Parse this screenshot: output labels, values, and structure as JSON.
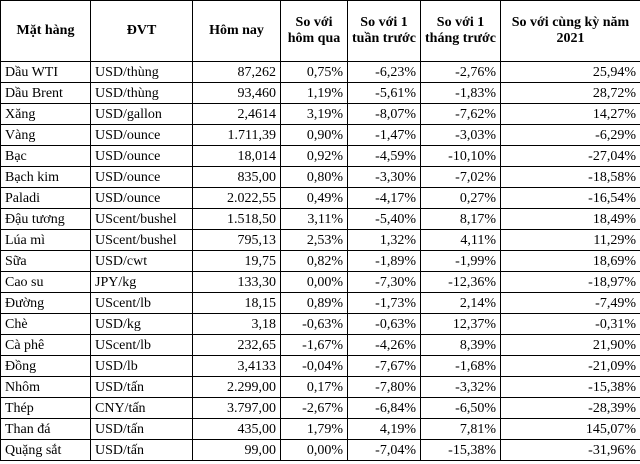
{
  "table": {
    "header": [
      "Mặt hàng",
      "ĐVT",
      "Hôm nay",
      "So với hôm qua",
      "So với 1 tuần trước",
      "So với 1 tháng trước",
      "So với cùng kỳ năm 2021"
    ],
    "rows": [
      [
        "Dầu WTI",
        "USD/thùng",
        "87,262",
        "0,75%",
        "-6,23%",
        "-2,76%",
        "25,94%"
      ],
      [
        "Dầu Brent",
        "USD/thùng",
        "93,460",
        "1,19%",
        "-5,61%",
        "-1,83%",
        "28,72%"
      ],
      [
        "Xăng",
        "USD/gallon",
        "2,4614",
        "3,19%",
        "-8,07%",
        "-7,62%",
        "14,27%"
      ],
      [
        "Vàng",
        "USD/ounce",
        "1.711,39",
        "0,90%",
        "-1,47%",
        "-3,03%",
        "-6,29%"
      ],
      [
        "Bạc",
        "USD/ounce",
        "18,014",
        "0,92%",
        "-4,59%",
        "-10,10%",
        "-27,04%"
      ],
      [
        "Bạch kim",
        "USD/ounce",
        "835,00",
        "0,80%",
        "-3,30%",
        "-7,02%",
        "-18,58%"
      ],
      [
        "Paladi",
        "USD/ounce",
        "2.022,55",
        "0,49%",
        "-4,17%",
        "0,27%",
        "-16,54%"
      ],
      [
        "Đậu tương",
        "UScent/bushel",
        "1.518,50",
        "3,11%",
        "-5,40%",
        "8,17%",
        "18,49%"
      ],
      [
        "Lúa mì",
        "UScent/bushel",
        "795,13",
        "2,53%",
        "1,32%",
        "4,11%",
        "11,29%"
      ],
      [
        "Sữa",
        "USD/cwt",
        "19,75",
        "0,82%",
        "-1,89%",
        "-1,99%",
        "18,69%"
      ],
      [
        "Cao su",
        "JPY/kg",
        "133,30",
        "0,00%",
        "-7,30%",
        "-12,36%",
        "-18,97%"
      ],
      [
        "Đường",
        "UScent/lb",
        "18,15",
        "0,89%",
        "-1,73%",
        "2,14%",
        "-7,49%"
      ],
      [
        "Chè",
        "USD/kg",
        "3,18",
        "-0,63%",
        "-0,63%",
        "12,37%",
        "-0,31%"
      ],
      [
        "Cà phê",
        "UScent/lb",
        "232,65",
        "-1,67%",
        "-4,26%",
        "8,39%",
        "21,90%"
      ],
      [
        "Đồng",
        "USD/lb",
        "3,4133",
        "-0,04%",
        "-7,67%",
        "-1,68%",
        "-21,09%"
      ],
      [
        "Nhôm",
        "USD/tấn",
        "2.299,00",
        "0,17%",
        "-7,80%",
        "-3,32%",
        "-15,38%"
      ],
      [
        "Thép",
        "CNY/tấn",
        "3.797,00",
        "-2,67%",
        "-6,84%",
        "-6,50%",
        "-28,39%"
      ],
      [
        "Than đá",
        "USD/tấn",
        "435,00",
        "1,79%",
        "4,19%",
        "7,81%",
        "145,07%"
      ],
      [
        "Quặng sắt",
        "USD/tấn",
        "99,00",
        "0,00%",
        "-7,04%",
        "-15,38%",
        "-31,96%"
      ]
    ]
  }
}
